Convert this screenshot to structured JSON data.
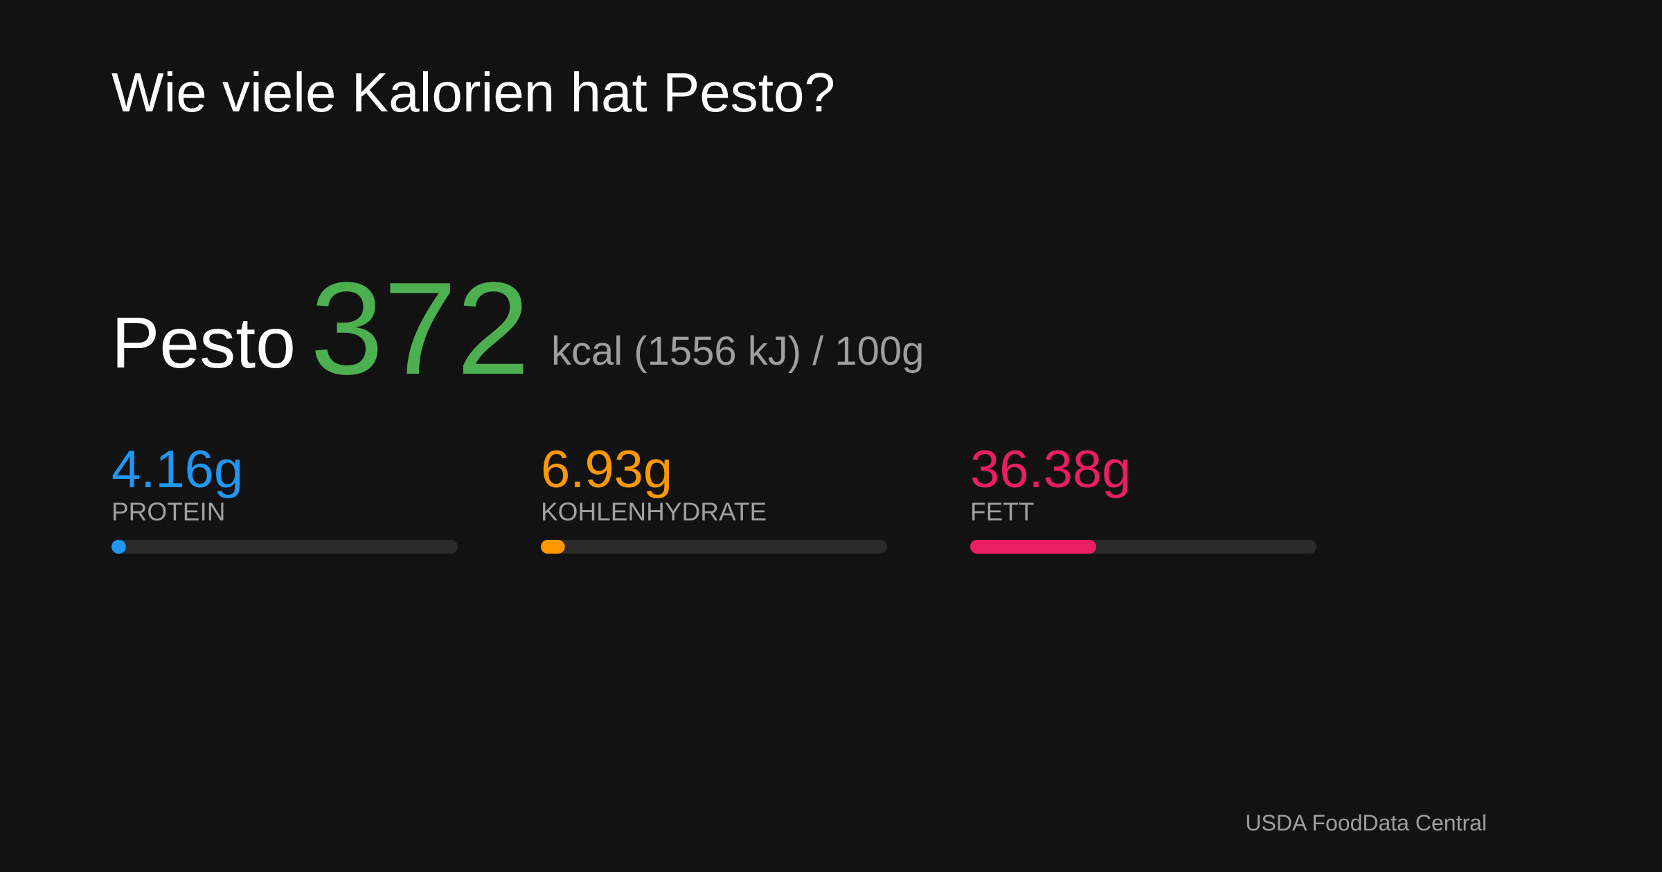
{
  "title": "Wie viele Kalorien hat Pesto?",
  "food": "Pesto",
  "calories": "372",
  "calories_color": "#4caf50",
  "unit_text": "kcal (1556 kJ) / 100g",
  "macros": {
    "xlim": [
      0,
      100
    ],
    "items": [
      {
        "value": 4.16,
        "value_label": "4.16g",
        "label": "PROTEIN",
        "color": "#2196f3"
      },
      {
        "value": 6.93,
        "value_label": "6.93g",
        "label": "KOHLENHYDRATE",
        "color": "#ff9800"
      },
      {
        "value": 36.38,
        "value_label": "36.38g",
        "label": "FETT",
        "color": "#e91e63"
      }
    ]
  },
  "source": "USDA FoodData Central"
}
